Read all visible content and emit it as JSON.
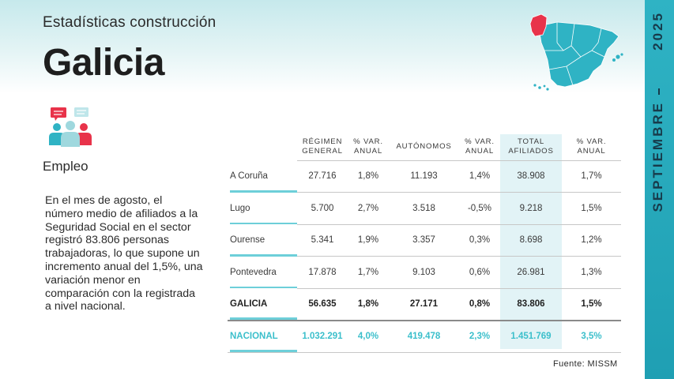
{
  "header": {
    "subtitle": "Estadísticas construcción",
    "title": "Galicia"
  },
  "sidebar": {
    "year": "2025",
    "month": "SEPTIEMBRE"
  },
  "section": {
    "label": "Empleo",
    "paragraph": "En el mes de agosto, el número medio de afiliados a la Seguridad Social en el sector registró 83.806 personas trabajadoras, lo que supone un incremento anual del 1,5%, una variación menor en comparación con la registrada a nivel nacional."
  },
  "table": {
    "headers": [
      "",
      "RÉGIMEN GENERAL",
      "% VAR. ANUAL",
      "AUTÓNOMOS",
      "% VAR. ANUAL",
      "TOTAL AFILIADOS",
      "% VAR. ANUAL"
    ],
    "rows": [
      [
        "A Coruña",
        "27.716",
        "1,8%",
        "11.193",
        "1,4%",
        "38.908",
        "1,7%"
      ],
      [
        "Lugo",
        "5.700",
        "2,7%",
        "3.518",
        "-0,5%",
        "9.218",
        "1,5%"
      ],
      [
        "Ourense",
        "5.341",
        "1,9%",
        "3.357",
        "0,3%",
        "8.698",
        "1,2%"
      ],
      [
        "Pontevedra",
        "17.878",
        "1,7%",
        "9.103",
        "0,6%",
        "26.981",
        "1,3%"
      ],
      [
        "GALICIA",
        "56.635",
        "1,8%",
        "27.171",
        "0,8%",
        "83.806",
        "1,5%"
      ],
      [
        "NACIONAL",
        "1.032.291",
        "4,0%",
        "419.478",
        "2,3%",
        "1.451.769",
        "3,5%"
      ]
    ]
  },
  "source": "Fuente: MISSM",
  "colors": {
    "accent": "#2fb3c4",
    "highlight_region": "#e8334a",
    "map_fill": "#2fb3c4",
    "national_text": "#3bbfcb"
  },
  "icons": {
    "people": "people-group-icon",
    "map": "spain-map-icon"
  }
}
